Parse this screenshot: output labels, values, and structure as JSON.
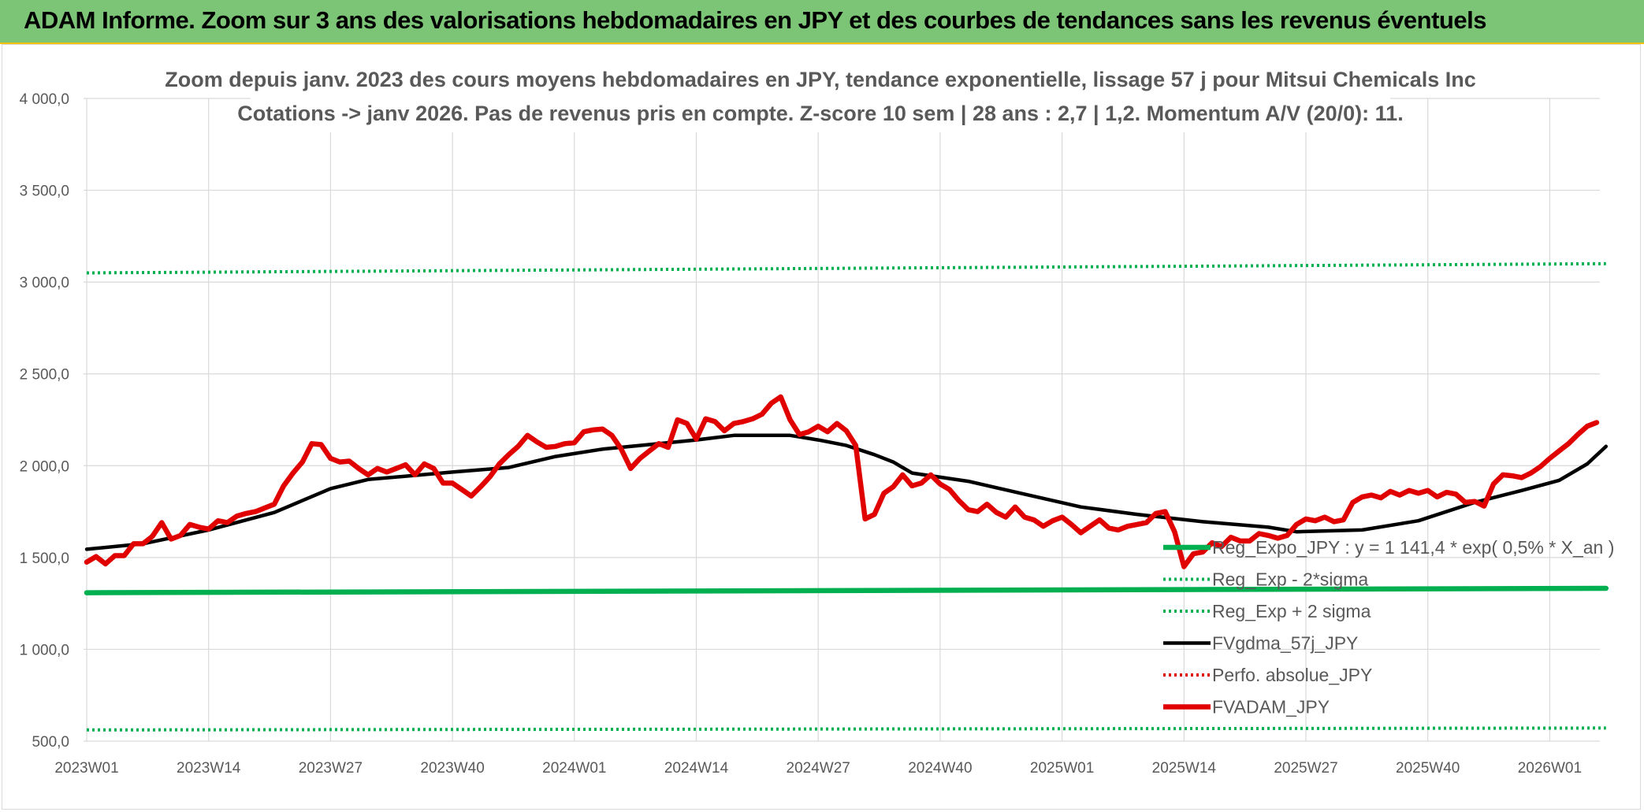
{
  "header": {
    "banner": "ADAM Informe. Zoom sur 3 ans des valorisations hebdomadaires en JPY et des courbes de tendances sans les revenus éventuels"
  },
  "colors": {
    "banner_bg": "#7cc576",
    "banner_border": "#f2c200",
    "green": "#00b050",
    "black": "#000000",
    "red": "#e00000",
    "grid": "#d9d9d9",
    "text": "#595959"
  },
  "chart_data": {
    "type": "line",
    "title_line1": "Zoom depuis janv. 2023 des cours moyens hebdomadaires en JPY, tendance exponentielle, lissage 57 j pour Mitsui Chemicals Inc",
    "title_line2": "Cotations -> janv 2026. Pas de revenus pris en compte. Z-score 10 sem | 28 ans : 2,7 | 1,2. Momentum A/V (20/0): 11.",
    "ylim": [
      500,
      4000
    ],
    "y_ticks": [
      "4 000,0",
      "3 500,0",
      "3 000,0",
      "2 500,0",
      "2 000,0",
      "1 500,0",
      "1 000,0",
      "500,0"
    ],
    "x_ticks": [
      "2023W01",
      "2023W14",
      "2023W27",
      "2023W40",
      "2024W01",
      "2024W14",
      "2024W27",
      "2024W40",
      "2025W01",
      "2025W14",
      "2025W27",
      "2025W40",
      "2026W01"
    ],
    "grid": true,
    "legend_position": "bottom-right",
    "n_weeks": 163,
    "series": [
      {
        "name": "Reg_Expo_JPY : y = 1 141,4 * exp( 0,5% *  X_an )",
        "style": "thick-solid",
        "color": "#00b050",
        "values": [
          [
            0,
            1308
          ],
          [
            162,
            1332
          ]
        ]
      },
      {
        "name": "Reg_Exp - 2*sigma",
        "style": "dotted",
        "color": "#00b050",
        "values": [
          [
            0,
            561
          ],
          [
            162,
            571
          ]
        ]
      },
      {
        "name": "Reg_Exp + 2 sigma",
        "style": "dotted",
        "color": "#00b050",
        "values": [
          [
            0,
            3050
          ],
          [
            162,
            3100
          ]
        ]
      },
      {
        "name": "FVgdma_57j_JPY",
        "style": "solid",
        "color": "#000000",
        "values": [
          [
            0,
            1545
          ],
          [
            6,
            1575
          ],
          [
            13,
            1650
          ],
          [
            20,
            1745
          ],
          [
            26,
            1875
          ],
          [
            30,
            1925
          ],
          [
            39,
            1965
          ],
          [
            45,
            1990
          ],
          [
            50,
            2050
          ],
          [
            55,
            2090
          ],
          [
            59,
            2110
          ],
          [
            65,
            2140
          ],
          [
            69,
            2165
          ],
          [
            75,
            2165
          ],
          [
            78,
            2140
          ],
          [
            81,
            2110
          ],
          [
            84,
            2060
          ],
          [
            86,
            2020
          ],
          [
            88,
            1960
          ],
          [
            94,
            1915
          ],
          [
            100,
            1845
          ],
          [
            106,
            1775
          ],
          [
            112,
            1735
          ],
          [
            119,
            1695
          ],
          [
            126,
            1665
          ],
          [
            129,
            1640
          ],
          [
            136,
            1650
          ],
          [
            142,
            1700
          ],
          [
            148,
            1800
          ],
          [
            153,
            1865
          ],
          [
            157,
            1920
          ],
          [
            160,
            2010
          ],
          [
            162,
            2105
          ]
        ]
      },
      {
        "name": "Perfo. absolue_JPY",
        "style": "dotted",
        "color": "#e00000",
        "values": []
      },
      {
        "name": "FVADAM_JPY",
        "style": "thick-solid",
        "color": "#e00000",
        "values": [
          [
            0,
            1475
          ],
          [
            1,
            1505
          ],
          [
            2,
            1465
          ],
          [
            3,
            1510
          ],
          [
            4,
            1510
          ],
          [
            5,
            1575
          ],
          [
            6,
            1575
          ],
          [
            7,
            1615
          ],
          [
            8,
            1690
          ],
          [
            9,
            1600
          ],
          [
            10,
            1620
          ],
          [
            11,
            1680
          ],
          [
            12,
            1665
          ],
          [
            13,
            1655
          ],
          [
            14,
            1700
          ],
          [
            15,
            1690
          ],
          [
            16,
            1725
          ],
          [
            17,
            1740
          ],
          [
            18,
            1750
          ],
          [
            19,
            1770
          ],
          [
            20,
            1790
          ],
          [
            21,
            1890
          ],
          [
            22,
            1960
          ],
          [
            23,
            2020
          ],
          [
            24,
            2120
          ],
          [
            25,
            2115
          ],
          [
            26,
            2040
          ],
          [
            27,
            2020
          ],
          [
            28,
            2025
          ],
          [
            29,
            1985
          ],
          [
            30,
            1950
          ],
          [
            31,
            1985
          ],
          [
            32,
            1965
          ],
          [
            33,
            1985
          ],
          [
            34,
            2005
          ],
          [
            35,
            1950
          ],
          [
            36,
            2010
          ],
          [
            37,
            1985
          ],
          [
            38,
            1905
          ],
          [
            39,
            1905
          ],
          [
            40,
            1870
          ],
          [
            41,
            1835
          ],
          [
            42,
            1885
          ],
          [
            43,
            1940
          ],
          [
            44,
            2010
          ],
          [
            45,
            2060
          ],
          [
            46,
            2105
          ],
          [
            47,
            2165
          ],
          [
            48,
            2130
          ],
          [
            49,
            2100
          ],
          [
            50,
            2105
          ],
          [
            51,
            2120
          ],
          [
            52,
            2125
          ],
          [
            53,
            2185
          ],
          [
            54,
            2195
          ],
          [
            55,
            2200
          ],
          [
            56,
            2165
          ],
          [
            57,
            2090
          ],
          [
            58,
            1985
          ],
          [
            59,
            2040
          ],
          [
            60,
            2080
          ],
          [
            61,
            2120
          ],
          [
            62,
            2100
          ],
          [
            63,
            2250
          ],
          [
            64,
            2230
          ],
          [
            65,
            2145
          ],
          [
            66,
            2255
          ],
          [
            67,
            2240
          ],
          [
            68,
            2190
          ],
          [
            69,
            2230
          ],
          [
            70,
            2240
          ],
          [
            71,
            2255
          ],
          [
            72,
            2280
          ],
          [
            73,
            2340
          ],
          [
            74,
            2375
          ],
          [
            75,
            2250
          ],
          [
            76,
            2170
          ],
          [
            77,
            2185
          ],
          [
            78,
            2215
          ],
          [
            79,
            2185
          ],
          [
            80,
            2230
          ],
          [
            81,
            2190
          ],
          [
            82,
            2110
          ],
          [
            83,
            1710
          ],
          [
            84,
            1735
          ],
          [
            85,
            1850
          ],
          [
            86,
            1885
          ],
          [
            87,
            1950
          ],
          [
            88,
            1890
          ],
          [
            89,
            1905
          ],
          [
            90,
            1950
          ],
          [
            91,
            1900
          ],
          [
            92,
            1870
          ],
          [
            93,
            1810
          ],
          [
            94,
            1760
          ],
          [
            95,
            1750
          ],
          [
            96,
            1790
          ],
          [
            97,
            1745
          ],
          [
            98,
            1720
          ],
          [
            99,
            1775
          ],
          [
            100,
            1720
          ],
          [
            101,
            1705
          ],
          [
            102,
            1670
          ],
          [
            103,
            1700
          ],
          [
            104,
            1720
          ],
          [
            105,
            1680
          ],
          [
            106,
            1635
          ],
          [
            107,
            1670
          ],
          [
            108,
            1705
          ],
          [
            109,
            1660
          ],
          [
            110,
            1650
          ],
          [
            111,
            1670
          ],
          [
            112,
            1680
          ],
          [
            113,
            1690
          ],
          [
            114,
            1740
          ],
          [
            115,
            1750
          ],
          [
            116,
            1640
          ],
          [
            117,
            1450
          ],
          [
            118,
            1520
          ],
          [
            119,
            1530
          ],
          [
            120,
            1580
          ],
          [
            121,
            1560
          ],
          [
            122,
            1610
          ],
          [
            123,
            1590
          ],
          [
            124,
            1590
          ],
          [
            125,
            1630
          ],
          [
            126,
            1620
          ],
          [
            127,
            1605
          ],
          [
            128,
            1620
          ],
          [
            129,
            1680
          ],
          [
            130,
            1710
          ],
          [
            131,
            1700
          ],
          [
            132,
            1720
          ],
          [
            133,
            1695
          ],
          [
            134,
            1705
          ],
          [
            135,
            1800
          ],
          [
            136,
            1830
          ],
          [
            137,
            1840
          ],
          [
            138,
            1825
          ],
          [
            139,
            1860
          ],
          [
            140,
            1840
          ],
          [
            141,
            1865
          ],
          [
            142,
            1850
          ],
          [
            143,
            1865
          ],
          [
            144,
            1830
          ],
          [
            145,
            1855
          ],
          [
            146,
            1845
          ],
          [
            147,
            1800
          ],
          [
            148,
            1805
          ],
          [
            149,
            1780
          ],
          [
            150,
            1900
          ],
          [
            151,
            1950
          ],
          [
            152,
            1945
          ],
          [
            153,
            1935
          ],
          [
            154,
            1960
          ],
          [
            155,
            1995
          ],
          [
            156,
            2040
          ],
          [
            157,
            2080
          ],
          [
            158,
            2120
          ],
          [
            159,
            2170
          ],
          [
            160,
            2215
          ],
          [
            161,
            2235
          ]
        ]
      }
    ]
  }
}
